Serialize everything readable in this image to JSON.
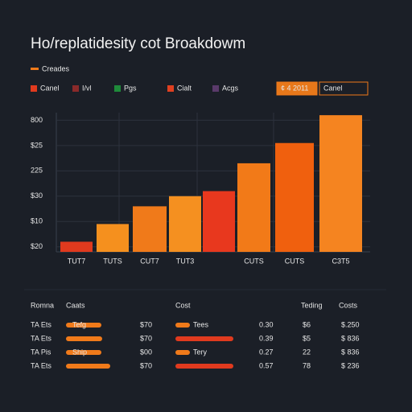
{
  "chart_data": {
    "type": "bar",
    "title": "Ho/replatidesity cot Broakdowm",
    "series_label": "Creades",
    "legend": [
      "Canel",
      "I/vl",
      "Pgs",
      "Cialt",
      "Acgs"
    ],
    "legend_colors": [
      "#e03a1e",
      "#8a2a2a",
      "#1f8a3a",
      "#e04020",
      "#5a3a6a"
    ],
    "buttons": [
      "¢ 4 2011",
      "Canel"
    ],
    "categories": [
      "TUT7",
      "TUTS",
      "CUT7",
      "TUT3",
      null,
      "CUTS",
      "CUTS",
      "C3T5"
    ],
    "values": [
      1.2,
      1.9,
      2.6,
      3.0,
      3.2,
      4.3,
      5.1,
      6.2
    ],
    "colors": [
      "#e03a1e",
      "#f5901e",
      "#f07a1a",
      "#f59020",
      "#e8381e",
      "#f27a18",
      "#f0600e",
      "#f58420"
    ],
    "ylim": [
      0.8,
      6.3
    ],
    "yticks": [
      {
        "value": 1,
        "label": "$20"
      },
      {
        "value": 2,
        "label": "$10"
      },
      {
        "value": 3,
        "label": "$30"
      },
      {
        "value": 4,
        "label": "225"
      },
      {
        "value": 5,
        "label": "$25"
      },
      {
        "value": 6,
        "label": "800"
      }
    ],
    "grid": true
  },
  "table": {
    "headers": [
      "Romna",
      "Caats",
      "Cost",
      "Teding",
      "Costs"
    ],
    "rows": [
      {
        "name": "TA Ets",
        "tag": "Tefg",
        "cost": "$70",
        "tag2": "Tees",
        "ratio": "0.30",
        "count": "$6",
        "total": "$.250"
      },
      {
        "name": "TA Ets",
        "cost": "$70",
        "ratio": "0.39",
        "count": "$5",
        "total": "$ 836"
      },
      {
        "name": "TA Pis",
        "tag": "Ship",
        "cost": "$00",
        "tag2": "Tery",
        "ratio": "0.27",
        "count": "22",
        "total": "$ 836"
      },
      {
        "name": "TA Ets",
        "cost": "$70",
        "ratio": "0.57",
        "count": "78",
        "total": "$ 236"
      }
    ]
  }
}
